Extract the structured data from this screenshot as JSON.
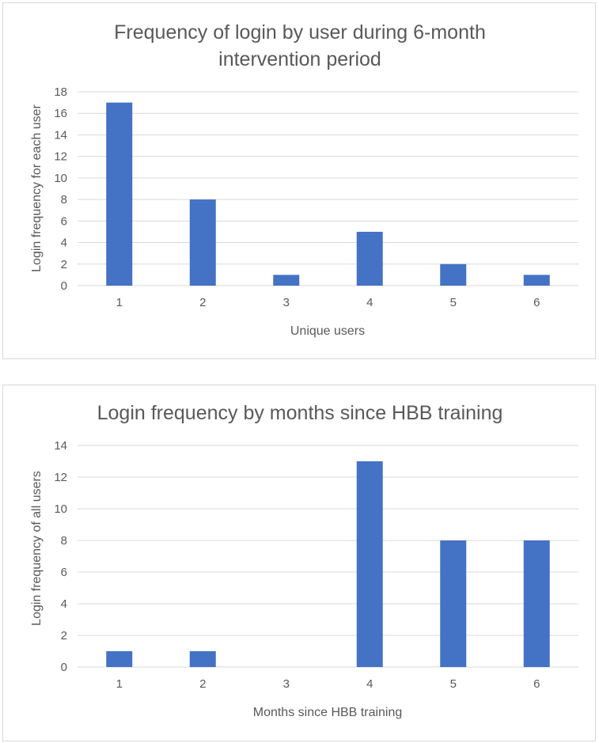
{
  "colors": {
    "bar": "#4472c4",
    "grid": "#d9d9d9",
    "text": "#595959"
  },
  "chart_data": [
    {
      "type": "bar",
      "title_lines": [
        "Frequency of login by user during 6-month",
        "intervention period"
      ],
      "xlabel": "Unique users",
      "ylabel": "Login frequency for each user",
      "categories": [
        "1",
        "2",
        "3",
        "4",
        "5",
        "6"
      ],
      "values": [
        17,
        8,
        1,
        5,
        2,
        1
      ],
      "ylim": [
        0,
        18
      ],
      "yticks": [
        "0",
        "2",
        "4",
        "6",
        "8",
        "10",
        "12",
        "14",
        "16",
        "18"
      ],
      "grid": true,
      "legend": "none"
    },
    {
      "type": "bar",
      "title_lines": [
        "Login frequency by months since HBB training"
      ],
      "xlabel": "Months since HBB training",
      "ylabel": "Login frequency  of all users",
      "categories": [
        "1",
        "2",
        "3",
        "4",
        "5",
        "6"
      ],
      "values": [
        1,
        1,
        0,
        13,
        8,
        8
      ],
      "ylim": [
        0,
        14
      ],
      "yticks": [
        "0",
        "2",
        "4",
        "6",
        "8",
        "10",
        "12",
        "14"
      ],
      "grid": true,
      "legend": "none"
    }
  ]
}
